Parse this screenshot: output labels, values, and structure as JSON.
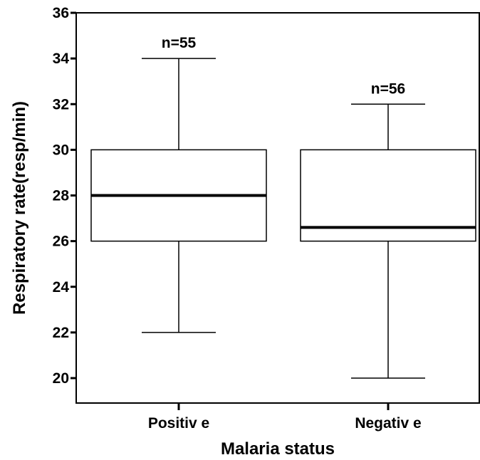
{
  "chart_data": {
    "type": "box",
    "xlabel": "Malaria status",
    "ylabel": "Respiratory rate(resp/min)",
    "ylim": [
      19,
      36
    ],
    "yticks": [
      20,
      22,
      24,
      26,
      28,
      30,
      32,
      34,
      36
    ],
    "grid": false,
    "categories": [
      "Positiv e",
      "Negativ e"
    ],
    "boxes": [
      {
        "category": "Positiv e",
        "min": 22,
        "q1": 26,
        "median": 28,
        "q3": 30,
        "max": 34,
        "n_label": "n=55"
      },
      {
        "category": "Negativ e",
        "min": 20,
        "q1": 26,
        "median": 26.6,
        "q3": 30,
        "max": 32,
        "n_label": "n=56"
      }
    ]
  }
}
